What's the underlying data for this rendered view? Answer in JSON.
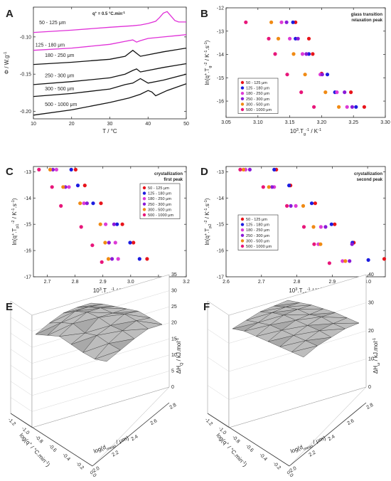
{
  "figure": {
    "panel_letters": [
      "A",
      "B",
      "C",
      "D",
      "E",
      "F"
    ]
  },
  "colors": {
    "s50_125": "#e8141b",
    "s125_180": "#1c1ce0",
    "s180_250": "#dd3ad6",
    "s250_300": "#8a1ad8",
    "s300_500": "#f08a14",
    "s500_1000": "#e8167a",
    "curve_magenta": "#e030d8",
    "curve_black": "#111111",
    "surface_fill": "#bdbdbd",
    "surface_stroke": "#333333"
  },
  "legend_entries": [
    "50 -  125 μm",
    "125 -  180 μm",
    "180 -  250 μm",
    "250 -  300 μm",
    "300 -  500 μm",
    "500 - 1000 μm"
  ],
  "chart_data": [
    {
      "panel": "A",
      "type": "line",
      "annotation": "q+ = 0.5 °C.min-1",
      "annotation_text": "q",
      "annotation_sup": "+",
      "annotation_rest": " = 0.5 °C.min",
      "annotation_unit_sup": "-1",
      "xlabel": "T  /  °C",
      "ylabel": "Φ  /  W.g",
      "ylabel_sup": "-1",
      "xlim": [
        10,
        50
      ],
      "ylim": [
        -0.21,
        -0.06
      ],
      "xticks": [
        10,
        20,
        30,
        40,
        50
      ],
      "yticks": [
        -0.2,
        -0.15,
        -0.1
      ],
      "ytick_labels": [
        "-0.20",
        "-0.15",
        "-0.10"
      ],
      "series": [
        {
          "name": "50 - 125 μm",
          "color": "curve_magenta",
          "x": [
            10,
            20,
            30,
            36,
            38,
            40,
            42,
            43,
            44,
            45,
            46,
            47,
            48,
            50
          ],
          "y": [
            -0.094,
            -0.091,
            -0.087,
            -0.085,
            -0.084,
            -0.082,
            -0.079,
            -0.074,
            -0.068,
            -0.066,
            -0.072,
            -0.078,
            -0.08,
            -0.08
          ]
        },
        {
          "name": "125 - 180 μm",
          "color": "curve_magenta",
          "x": [
            10,
            20,
            30,
            34,
            36,
            37,
            38,
            40,
            44,
            48,
            50
          ],
          "y": [
            -0.118,
            -0.115,
            -0.11,
            -0.106,
            -0.104,
            -0.107,
            -0.105,
            -0.102,
            -0.1,
            -0.098,
            -0.097
          ]
        },
        {
          "name": "180 - 250 μm",
          "color": "curve_black",
          "x": [
            10,
            20,
            30,
            34,
            36,
            37,
            38,
            40,
            44,
            50
          ],
          "y": [
            -0.137,
            -0.134,
            -0.13,
            -0.126,
            -0.118,
            -0.122,
            -0.126,
            -0.124,
            -0.12,
            -0.115
          ]
        },
        {
          "name": "250 - 300 μm",
          "color": "curve_black",
          "x": [
            10,
            20,
            30,
            34,
            36,
            37,
            38,
            40,
            44,
            50
          ],
          "y": [
            -0.164,
            -0.16,
            -0.155,
            -0.15,
            -0.145,
            -0.143,
            -0.147,
            -0.145,
            -0.141,
            -0.136
          ]
        },
        {
          "name": "300 - 500 μm",
          "color": "curve_black",
          "x": [
            10,
            20,
            30,
            34,
            36,
            38,
            40,
            44,
            50
          ],
          "y": [
            -0.18,
            -0.176,
            -0.17,
            -0.164,
            -0.162,
            -0.156,
            -0.162,
            -0.158,
            -0.15
          ]
        },
        {
          "name": "500 - 1000 μm",
          "color": "curve_black",
          "x": [
            10,
            20,
            30,
            35,
            38,
            40,
            41,
            42,
            45,
            50
          ],
          "y": [
            -0.205,
            -0.198,
            -0.188,
            -0.182,
            -0.177,
            -0.172,
            -0.174,
            -0.179,
            -0.172,
            -0.163
          ]
        }
      ],
      "curve_labels": [
        {
          "text": "50 - 125 μm",
          "x": 11.5,
          "y": -0.083,
          "color": "curve_magenta"
        },
        {
          "text": "125 - 180 μm",
          "x": 10.5,
          "y": -0.113,
          "color": "curve_magenta"
        },
        {
          "text": "180 - 250 μm",
          "x": 13,
          "y": -0.127,
          "color": "curve_black"
        },
        {
          "text": "250 - 300 μm",
          "x": 13,
          "y": -0.154,
          "color": "curve_black"
        },
        {
          "text": "300 - 500 μm",
          "x": 13,
          "y": -0.172,
          "color": "curve_black"
        },
        {
          "text": "500 - 1000 μm",
          "x": 13,
          "y": -0.193,
          "color": "curve_black"
        }
      ]
    },
    {
      "panel": "B",
      "type": "scatter",
      "annotation_lines": [
        "glass transition",
        "relaxation peak"
      ],
      "xlabel": "10",
      "xlabel_sup": "3",
      "xlabel_rest": ".T",
      "xlabel_sub": "g",
      "xlabel_sup2": "-1",
      "xlabel_unit": "  /  K",
      "xlabel_unit_sup": "-1",
      "ylabel": "ln(q+.T  -2 / K-1.s-1)",
      "xlim": [
        3.05,
        3.3
      ],
      "ylim": [
        -16.7,
        -12.0
      ],
      "xticks": [
        3.05,
        3.1,
        3.15,
        3.2,
        3.25,
        3.3
      ],
      "xtick_labels": [
        "3.05",
        "3.10",
        "3.15",
        "3.20",
        "3.25",
        "3.30"
      ],
      "yticks": [
        -16,
        -15,
        -14,
        -13,
        -12
      ],
      "legend_position": "bottom-left",
      "series": [
        {
          "name": "50 -  125 μm",
          "color": "s50_125",
          "points": [
            [
              3.159,
              -12.62
            ],
            [
              3.18,
              -13.32
            ],
            [
              3.186,
              -13.98
            ],
            [
              3.2,
              -14.82
            ],
            [
              3.246,
              -15.62
            ],
            [
              3.267,
              -16.25
            ]
          ]
        },
        {
          "name": "125 -  180 μm",
          "color": "s125_180",
          "points": [
            [
              3.155,
              -12.62
            ],
            [
              3.159,
              -13.32
            ],
            [
              3.18,
              -13.98
            ],
            [
              3.209,
              -14.86
            ],
            [
              3.221,
              -15.62
            ],
            [
              3.254,
              -16.25
            ]
          ]
        },
        {
          "name": "180 -  250 μm",
          "color": "s180_250",
          "points": [
            [
              3.137,
              -12.62
            ],
            [
              3.15,
              -13.32
            ],
            [
              3.17,
              -13.98
            ],
            [
              3.198,
              -14.86
            ],
            [
              3.224,
              -15.62
            ],
            [
              3.24,
              -16.25
            ]
          ]
        },
        {
          "name": "250 -  300 μm",
          "color": "s250_300",
          "points": [
            [
              3.145,
              -12.62
            ],
            [
              3.163,
              -13.32
            ],
            [
              3.176,
              -13.98
            ],
            [
              3.201,
              -14.86
            ],
            [
              3.236,
              -15.62
            ],
            [
              3.248,
              -16.25
            ]
          ]
        },
        {
          "name": "300 -  500 μm",
          "color": "s300_500",
          "points": [
            [
              3.121,
              -12.62
            ],
            [
              3.132,
              -13.32
            ],
            [
              3.156,
              -13.98
            ],
            [
              3.174,
              -14.86
            ],
            [
              3.206,
              -15.62
            ],
            [
              3.227,
              -16.25
            ]
          ]
        },
        {
          "name": "500 - 1000 μm",
          "color": "s500_1000",
          "points": [
            [
              3.081,
              -12.62
            ],
            [
              3.117,
              -13.32
            ],
            [
              3.127,
              -13.98
            ],
            [
              3.146,
              -14.86
            ],
            [
              3.168,
              -15.62
            ],
            [
              3.188,
              -16.25
            ]
          ]
        }
      ]
    },
    {
      "panel": "C",
      "type": "scatter",
      "annotation_lines": [
        "crystallization",
        "first peak"
      ],
      "xlabel": "10",
      "xlabel_sup": "3",
      "xlabel_rest": ".T",
      "xlabel_sub": "p1",
      "xlabel_sup2": "-1",
      "xlabel_unit": "  /  K",
      "xlabel_unit_sup": "-1",
      "ylabel": "ln(q+.T  -2 / K-1.s-1)",
      "xlim": [
        2.65,
        3.2
      ],
      "ylim": [
        -17.0,
        -12.8
      ],
      "xticks": [
        2.7,
        2.8,
        2.9,
        3.0,
        3.1,
        3.2
      ],
      "xtick_labels": [
        "2.7",
        "2.8",
        "2.9",
        "3.0",
        "3.1",
        "3.2"
      ],
      "yticks": [
        -17,
        -16,
        -15,
        -14,
        -13
      ],
      "legend_position": "right",
      "series": [
        {
          "name": "50 -  125 μm",
          "color": "s50_125",
          "points": [
            [
              2.802,
              -12.92
            ],
            [
              2.835,
              -13.52
            ],
            [
              2.893,
              -14.2
            ],
            [
              2.97,
              -15.0
            ],
            [
              3.01,
              -15.7
            ],
            [
              3.059,
              -16.32
            ]
          ]
        },
        {
          "name": "125 -  180 μm",
          "color": "s125_180",
          "points": [
            [
              2.786,
              -12.92
            ],
            [
              2.81,
              -13.52
            ],
            [
              2.865,
              -14.2
            ],
            [
              2.951,
              -15.0
            ],
            [
              2.998,
              -15.7
            ],
            [
              3.032,
              -16.32
            ]
          ]
        },
        {
          "name": "180 -  250 μm",
          "color": "s180_250",
          "points": [
            [
              2.733,
              -12.92
            ],
            [
              2.778,
              -13.58
            ],
            [
              2.832,
              -14.2
            ],
            [
              2.91,
              -15.0
            ],
            [
              2.945,
              -15.7
            ],
            [
              2.955,
              -16.32
            ]
          ]
        },
        {
          "name": "250 -  300 μm",
          "color": "s250_300",
          "points": [
            [
              2.72,
              -12.92
            ],
            [
              2.765,
              -13.58
            ],
            [
              2.843,
              -14.2
            ],
            [
              2.94,
              -15.0
            ],
            [
              2.922,
              -15.7
            ],
            [
              2.933,
              -16.32
            ]
          ]
        },
        {
          "name": "300 -  500 μm",
          "color": "s300_500",
          "points": [
            [
              2.71,
              -12.92
            ],
            [
              2.757,
              -13.58
            ],
            [
              2.818,
              -14.2
            ],
            [
              2.891,
              -15.0
            ],
            [
              2.908,
              -15.7
            ],
            [
              2.92,
              -16.32
            ]
          ]
        },
        {
          "name": "500 - 1000 μm",
          "color": "s500_1000",
          "points": [
            [
              2.67,
              -12.92
            ],
            [
              2.717,
              -13.58
            ],
            [
              2.749,
              -14.3
            ],
            [
              2.822,
              -15.1
            ],
            [
              2.862,
              -15.8
            ],
            [
              2.896,
              -16.44
            ]
          ]
        }
      ]
    },
    {
      "panel": "D",
      "type": "scatter",
      "annotation_lines": [
        "crystallization",
        "second peak"
      ],
      "xlabel": "10",
      "xlabel_sup": "3",
      "xlabel_rest": ".T",
      "xlabel_sub": "p2",
      "xlabel_sup2": "-1",
      "xlabel_unit": "  /  K",
      "xlabel_unit_sup": "-1",
      "ylabel": "ln(q+.T  -2 / K-1.s-1)",
      "xlim": [
        2.6,
        3.05
      ],
      "ylim": [
        -17.0,
        -12.8
      ],
      "xticks": [
        2.6,
        2.7,
        2.8,
        2.9,
        3.0
      ],
      "xtick_labels": [
        "2.6",
        "2.7",
        "2.8",
        "2.9",
        "3.0"
      ],
      "yticks": [
        -17,
        -16,
        -15,
        -14,
        -13
      ],
      "legend_position": "right",
      "series": [
        {
          "name": "50 -  125 μm",
          "color": "s50_125",
          "points": [
            [
              2.742,
              -12.92
            ],
            [
              2.782,
              -13.52
            ],
            [
              2.852,
              -14.2
            ],
            [
              2.907,
              -15.0
            ],
            [
              2.961,
              -15.7
            ],
            [
              3.047,
              -16.32
            ]
          ]
        },
        {
          "name": "125 -  180 μm",
          "color": "s125_180",
          "points": [
            [
              2.736,
              -12.92
            ],
            [
              2.778,
              -13.52
            ],
            [
              2.842,
              -14.2
            ],
            [
              2.898,
              -15.0
            ],
            [
              2.957,
              -15.7
            ],
            [
              3.002,
              -16.36
            ]
          ]
        },
        {
          "name": "180 -  250 μm",
          "color": "s180_250",
          "points": [
            [
              2.655,
              -12.92
            ],
            [
              2.736,
              -13.58
            ],
            [
              2.797,
              -14.3
            ],
            [
              2.868,
              -15.1
            ],
            [
              2.861,
              -15.76
            ],
            [
              2.929,
              -16.4
            ]
          ]
        },
        {
          "name": "250 -  300 μm",
          "color": "s250_300",
          "points": [
            [
              2.667,
              -12.92
            ],
            [
              2.73,
              -13.58
            ],
            [
              2.783,
              -14.3
            ],
            [
              2.881,
              -15.1
            ],
            [
              2.956,
              -15.76
            ],
            [
              2.949,
              -16.4
            ]
          ]
        },
        {
          "name": "300 -  500 μm",
          "color": "s300_500",
          "points": [
            [
              2.649,
              -12.92
            ],
            [
              2.721,
              -13.58
            ],
            [
              2.818,
              -14.3
            ],
            [
              2.847,
              -15.1
            ],
            [
              2.867,
              -15.76
            ],
            [
              2.937,
              -16.4
            ]
          ]
        },
        {
          "name": "500 - 1000 μm",
          "color": "s500_1000",
          "points": [
            [
              2.64,
              -12.92
            ],
            [
              2.705,
              -13.58
            ],
            [
              2.772,
              -14.3
            ],
            [
              2.82,
              -15.1
            ],
            [
              2.849,
              -15.76
            ],
            [
              2.892,
              -16.48
            ]
          ]
        }
      ]
    },
    {
      "panel": "E",
      "type": "surface3d",
      "zlabel": "ΔH",
      "zlabel_sub": "Q",
      "zlabel_rest": "  /  kJ.mol",
      "zlabel_sup": "-1",
      "xlabel": "log(q",
      "xlabel_sup": "+",
      "xlabel_rest": " / °C.min",
      "xlabel_sup2": "-1",
      "xlabel_end": ")",
      "ylabel": "log(d",
      "ylabel_sub": "mean",
      "ylabel_rest": " / μm)",
      "zlim": [
        0,
        35
      ],
      "zticks": [
        0,
        5,
        10,
        15,
        20,
        25,
        30,
        35
      ],
      "xticks": [
        "-1.2",
        "-1.0",
        "-0.8",
        "-0.6",
        "-0.4",
        "-0.2",
        "0.0"
      ],
      "yticks": [
        "2.0",
        "2.2",
        "2.4",
        "2.6",
        "2.8"
      ]
    },
    {
      "panel": "F",
      "type": "surface3d",
      "zlabel": "ΔH",
      "zlabel_sub": "ω",
      "zlabel_rest": "  /  kJ.mol",
      "zlabel_sup": "-1",
      "xlabel": "log(q",
      "xlabel_sup": "+",
      "xlabel_rest": " / °C.min",
      "xlabel_sup2": "-1",
      "xlabel_end": ")",
      "ylabel": "log(d",
      "ylabel_sub": "mean",
      "ylabel_rest": " / μm)",
      "zlim": [
        0,
        40
      ],
      "zticks": [
        0,
        10,
        20,
        30,
        40
      ],
      "xticks": [
        "-1.2",
        "-1.0",
        "-0.8",
        "-0.6",
        "-0.4",
        "-0.2",
        "0.0"
      ],
      "yticks": [
        "2.0",
        "2.2",
        "2.4",
        "2.6",
        "2.8"
      ]
    }
  ]
}
